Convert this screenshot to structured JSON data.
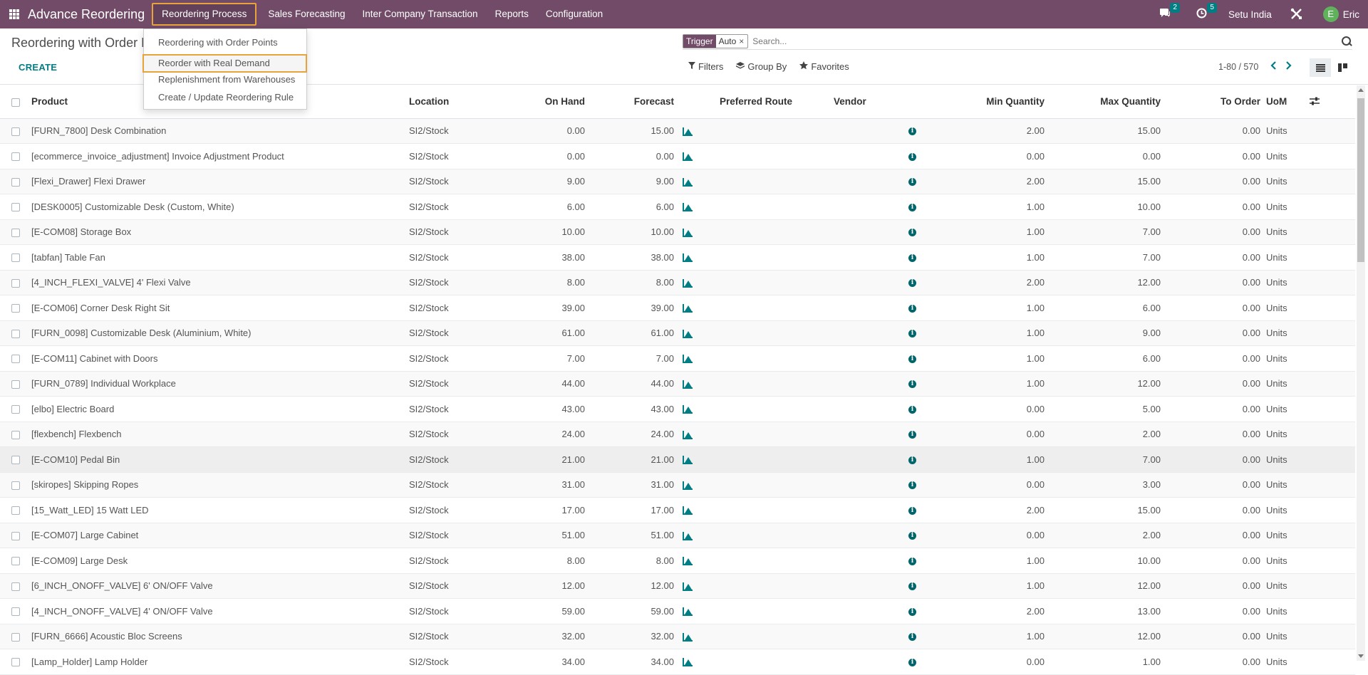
{
  "app": {
    "title": "Advance Reordering",
    "menu": [
      "Reordering Process",
      "Sales Forecasting",
      "Inter Company Transaction",
      "Reports",
      "Configuration"
    ],
    "messages_count": "2",
    "activities_count": "5",
    "company": "Setu India",
    "user_initial": "E",
    "user_name": "Eric"
  },
  "dropdown": {
    "items": [
      "Reordering with Order Points",
      "Reorder with Real Demand",
      "Replenishment from Warehouses",
      "Create / Update Reordering Rule"
    ],
    "selected_index": 1
  },
  "control_panel": {
    "title": "Reordering with Order Points",
    "create_label": "CREATE",
    "facet_label": "Trigger",
    "facet_value": "Auto",
    "facet_remove": "×",
    "search_placeholder": "Search...",
    "filters_label": "Filters",
    "groupby_label": "Group By",
    "favorites_label": "Favorites",
    "pager_text": "1-80 / 570"
  },
  "table": {
    "headers": {
      "product": "Product",
      "location": "Location",
      "on_hand": "On Hand",
      "forecast": "Forecast",
      "preferred_route": "Preferred Route",
      "vendor": "Vendor",
      "min_qty": "Min Quantity",
      "max_qty": "Max Quantity",
      "to_order": "To Order",
      "uom": "UoM"
    },
    "rows": [
      [
        "[FURN_7800] Desk Combination",
        "SI2/Stock",
        "0.00",
        "15.00",
        "2.00",
        "15.00",
        "0.00",
        "Units"
      ],
      [
        "[ecommerce_invoice_adjustment] Invoice Adjustment Product",
        "SI2/Stock",
        "0.00",
        "0.00",
        "0.00",
        "0.00",
        "0.00",
        "Units"
      ],
      [
        "[Flexi_Drawer] Flexi Drawer",
        "SI2/Stock",
        "9.00",
        "9.00",
        "2.00",
        "15.00",
        "0.00",
        "Units"
      ],
      [
        "[DESK0005] Customizable Desk (Custom, White)",
        "SI2/Stock",
        "6.00",
        "6.00",
        "1.00",
        "10.00",
        "0.00",
        "Units"
      ],
      [
        "[E-COM08] Storage Box",
        "SI2/Stock",
        "10.00",
        "10.00",
        "1.00",
        "7.00",
        "0.00",
        "Units"
      ],
      [
        "[tabfan] Table Fan",
        "SI2/Stock",
        "38.00",
        "38.00",
        "1.00",
        "7.00",
        "0.00",
        "Units"
      ],
      [
        "[4_INCH_FLEXI_VALVE] 4' Flexi Valve",
        "SI2/Stock",
        "8.00",
        "8.00",
        "2.00",
        "12.00",
        "0.00",
        "Units"
      ],
      [
        "[E-COM06] Corner Desk Right Sit",
        "SI2/Stock",
        "39.00",
        "39.00",
        "1.00",
        "6.00",
        "0.00",
        "Units"
      ],
      [
        "[FURN_0098] Customizable Desk (Aluminium, White)",
        "SI2/Stock",
        "61.00",
        "61.00",
        "1.00",
        "9.00",
        "0.00",
        "Units"
      ],
      [
        "[E-COM11] Cabinet with Doors",
        "SI2/Stock",
        "7.00",
        "7.00",
        "1.00",
        "6.00",
        "0.00",
        "Units"
      ],
      [
        "[FURN_0789] Individual Workplace",
        "SI2/Stock",
        "44.00",
        "44.00",
        "1.00",
        "12.00",
        "0.00",
        "Units"
      ],
      [
        "[elbo] Electric Board",
        "SI2/Stock",
        "43.00",
        "43.00",
        "0.00",
        "5.00",
        "0.00",
        "Units"
      ],
      [
        "[flexbench] Flexbench",
        "SI2/Stock",
        "24.00",
        "24.00",
        "0.00",
        "2.00",
        "0.00",
        "Units"
      ],
      [
        "[E-COM10] Pedal Bin",
        "SI2/Stock",
        "21.00",
        "21.00",
        "1.00",
        "7.00",
        "0.00",
        "Units"
      ],
      [
        "[skiropes] Skipping Ropes",
        "SI2/Stock",
        "31.00",
        "31.00",
        "0.00",
        "3.00",
        "0.00",
        "Units"
      ],
      [
        "[15_Watt_LED] 15 Watt LED",
        "SI2/Stock",
        "17.00",
        "17.00",
        "2.00",
        "15.00",
        "0.00",
        "Units"
      ],
      [
        "[E-COM07] Large Cabinet",
        "SI2/Stock",
        "51.00",
        "51.00",
        "0.00",
        "2.00",
        "0.00",
        "Units"
      ],
      [
        "[E-COM09] Large Desk",
        "SI2/Stock",
        "8.00",
        "8.00",
        "1.00",
        "10.00",
        "0.00",
        "Units"
      ],
      [
        "[6_INCH_ONOFF_VALVE] 6' ON/OFF Valve",
        "SI2/Stock",
        "12.00",
        "12.00",
        "1.00",
        "12.00",
        "0.00",
        "Units"
      ],
      [
        "[4_INCH_ONOFF_VALVE] 4' ON/OFF Valve",
        "SI2/Stock",
        "59.00",
        "59.00",
        "2.00",
        "13.00",
        "0.00",
        "Units"
      ],
      [
        "[FURN_6666] Acoustic Bloc Screens",
        "SI2/Stock",
        "32.00",
        "32.00",
        "1.00",
        "12.00",
        "0.00",
        "Units"
      ],
      [
        "[Lamp_Holder] Lamp Holder",
        "SI2/Stock",
        "34.00",
        "34.00",
        "0.00",
        "1.00",
        "0.00",
        "Units"
      ]
    ],
    "hovered_row": 13
  },
  "icons": {
    "apps": "apps-grid-icon",
    "messages": "chat-icon",
    "activities": "clock-icon",
    "debug": "tools-icon",
    "forecast_report": "area-chart-icon",
    "vendor_info": "info-icon",
    "optional_columns": "sliders-icon"
  },
  "colors": {
    "navbar": "#714b67",
    "accent": "#017e84",
    "highlight_border": "#e8a33d",
    "avatar": "#5fb15c"
  }
}
